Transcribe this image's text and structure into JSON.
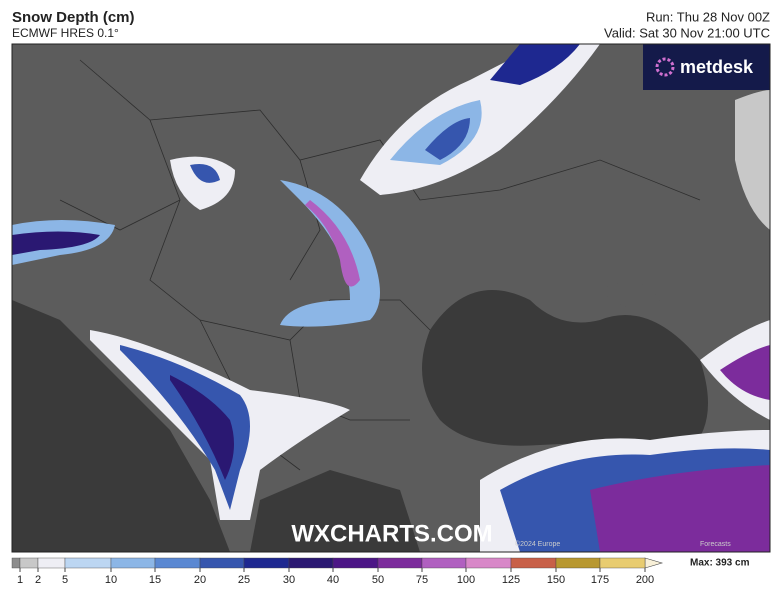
{
  "header": {
    "title": "Snow Depth (cm)",
    "subtitle": "ECMWF HRES 0.1°",
    "run": "Run: Thu 28 Nov 00Z",
    "valid": "Valid: Sat 30 Nov 21:00 UTC"
  },
  "map": {
    "brand": "metdesk",
    "watermark": "WXCHARTS.COM",
    "copyright": "©2024 Europe",
    "credit": "Forecasts"
  },
  "legend": {
    "ticks": [
      1,
      2,
      5,
      10,
      15,
      20,
      25,
      30,
      40,
      50,
      75,
      100,
      125,
      150,
      175,
      200
    ],
    "colors": [
      "#8c8c8c",
      "#c8c8c8",
      "#eeeef4",
      "#bcd6f2",
      "#8cb6e6",
      "#5a88d2",
      "#3656ae",
      "#1e2890",
      "#2a1872",
      "#4c1686",
      "#7c2c9c",
      "#b060c0",
      "#d888c8",
      "#c86048",
      "#b89830",
      "#e8cc70"
    ],
    "max": "Max: 393 cm"
  }
}
